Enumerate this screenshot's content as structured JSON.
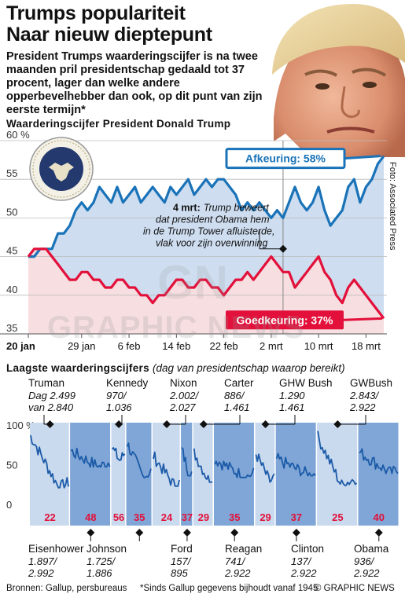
{
  "header": {
    "title_line1": "Trumps populariteit",
    "title_line2": "Naar nieuw dieptepunt",
    "intro": "President Trumps waarderingscijfer is na twee maanden pril presidentschap gedaald tot 37 procent, lager dan welke andere opperbevelhebber dan ook, op dit punt van zijn eerste termijn*"
  },
  "section1": {
    "title": "Waarderingscijfer President Donald Trump"
  },
  "section2": {
    "title": "Laagste waarderingscijfers",
    "subtitle": "(dag van presidentschap waarop bereikt)"
  },
  "photo_credit": "Foto: Associated Press",
  "watermark": "GRAPHIC NEWS",
  "footer": {
    "sources": "Bronnen: Gallup, persbureaus",
    "note": "*Sinds Gallup gegevens bijhoudt vanaf 1945",
    "copyright": "© GRAPHIC NEWS"
  },
  "colors": {
    "approve": "#e2103a",
    "disapprove": "#1a73b8",
    "band_light": "#c9d9ee",
    "band_dark": "#7fa6d6",
    "grid": "#bbbbbb"
  },
  "chart_data": [
    {
      "type": "line",
      "y_tick_labels": [
        "60 %",
        "55",
        "50",
        "45",
        "40",
        "35"
      ],
      "ylim": [
        35,
        60
      ],
      "x_tick_labels": [
        "20 jan",
        "29 jan",
        "6 feb",
        "14 feb",
        "22 feb",
        "2 mrt",
        "10 mrt",
        "18 mrt"
      ],
      "series": [
        {
          "name": "Afkeuring",
          "label": "Afkeuring: 58%",
          "end_value": 58,
          "values": [
            45,
            45,
            46,
            46,
            46,
            48,
            48,
            49,
            51,
            52,
            51,
            52,
            54,
            53,
            52,
            54,
            52,
            53,
            54,
            52,
            53,
            54,
            53,
            52,
            54,
            53,
            54,
            55,
            53,
            54,
            55,
            54,
            55,
            55,
            54,
            53,
            51,
            52,
            51,
            52,
            51,
            50,
            51,
            50,
            52,
            54,
            52,
            51,
            52,
            54,
            51,
            49,
            50,
            51,
            54,
            55,
            52,
            54,
            55,
            57,
            58
          ]
        },
        {
          "name": "Goedkeuring",
          "label": "Goedkeuring: 37%",
          "end_value": 37,
          "values": [
            45,
            46,
            46,
            46,
            45,
            44,
            43,
            42,
            42,
            43,
            43,
            42,
            42,
            41,
            41,
            42,
            42,
            41,
            41,
            40,
            40,
            39,
            40,
            40,
            41,
            42,
            42,
            41,
            41,
            42,
            42,
            41,
            41,
            40,
            41,
            42,
            42,
            43,
            42,
            43,
            44,
            45,
            44,
            43,
            43,
            41,
            42,
            43,
            44,
            45,
            43,
            42,
            40,
            39,
            41,
            42,
            41,
            40,
            39,
            38,
            37
          ]
        }
      ],
      "annotation": {
        "date": "4 mrt:",
        "text_line1": "Trump beweert",
        "text_line2": "dat president Obama hem",
        "text_line3": "in de Trump Tower afluisterde,",
        "text_line4": "vlak voor zijn overwinning"
      }
    },
    {
      "type": "line",
      "y_tick_labels": [
        "100 %",
        "50",
        "0"
      ],
      "ylim": [
        0,
        100
      ],
      "presidents": [
        {
          "name": "Truman",
          "low": "22",
          "note": "Dag 2.499 van 2.840"
        },
        {
          "name": "Eisenhower",
          "low": "48",
          "note": "1.897/ 2.992"
        },
        {
          "name": "Kennedy",
          "low": "56",
          "note": "970/ 1.036"
        },
        {
          "name": "Johnson",
          "low": "35",
          "note": "1.725/ 1.886"
        },
        {
          "name": "Nixon",
          "low": "24",
          "note": "2.002/ 2.027"
        },
        {
          "name": "Ford",
          "low": "37",
          "note": "157/ 895"
        },
        {
          "name": "Carter",
          "low": "29",
          "note": "886/ 1.461"
        },
        {
          "name": "Reagan",
          "low": "35",
          "note": "741/ 2.922"
        },
        {
          "name": "GHW Bush",
          "low": "29",
          "note": "1.290 1.461"
        },
        {
          "name": "Clinton",
          "low": "37",
          "note": "137/ 2.922"
        },
        {
          "name": "GWBush",
          "low": "25",
          "note": "2.843/ 2.922"
        },
        {
          "name": "Obama",
          "low": "40",
          "note": "936/ 2.922"
        }
      ]
    }
  ]
}
